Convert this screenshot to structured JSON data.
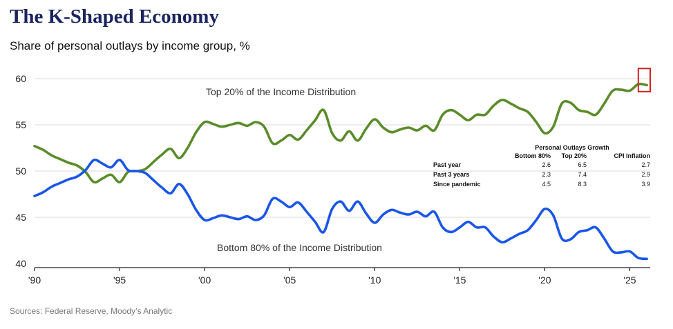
{
  "title": "The K-Shaped Economy",
  "subtitle": "Share of personal outlays by income group, %",
  "source": "Sources: Federal Reserve, Moody’s Analytic",
  "colors": {
    "top20": "#5b8c2a",
    "bottom80": "#1a56e8",
    "highlight": "#d42020",
    "grid": "#d9d9d9",
    "title": "#1a2560"
  },
  "table": {
    "title": "Personal Outlays Growth",
    "columns": [
      "Bottom 80%",
      "Top 20%",
      "CPI Inflation"
    ],
    "rows": [
      {
        "label": "Past year",
        "values": [
          "2.6",
          "6.5",
          "2.7"
        ]
      },
      {
        "label": "Past 3 years",
        "values": [
          "2.3",
          "7.4",
          "2.9"
        ]
      },
      {
        "label": "Since pandemic",
        "values": [
          "4.5",
          "8.3",
          "3.9"
        ]
      }
    ]
  },
  "chart_data": {
    "type": "line",
    "title": "The K-Shaped Economy",
    "subtitle": "Share of personal outlays by income group, %",
    "xlabel": "",
    "ylabel": "",
    "xlim": [
      1990,
      2026.5
    ],
    "ylim": [
      40,
      60
    ],
    "x_ticks": [
      1990,
      1995,
      2000,
      2005,
      2010,
      2015,
      2020,
      2025
    ],
    "x_tick_labels": [
      "'90",
      "'95",
      "'00",
      "'05",
      "'10",
      "'15",
      "'20",
      "'25"
    ],
    "y_ticks": [
      40,
      45,
      50,
      55,
      60
    ],
    "grid": "horizontal",
    "series": [
      {
        "name": "Top 20% of the Income Distribution",
        "color": "#5b8c2a",
        "points": [
          [
            1990.0,
            52.7
          ],
          [
            1990.5,
            52.3
          ],
          [
            1991.0,
            51.7
          ],
          [
            1991.5,
            51.3
          ],
          [
            1992.0,
            50.9
          ],
          [
            1992.5,
            50.6
          ],
          [
            1993.0,
            49.9
          ],
          [
            1993.5,
            48.8
          ],
          [
            1994.0,
            49.2
          ],
          [
            1994.5,
            49.6
          ],
          [
            1995.0,
            48.8
          ],
          [
            1995.5,
            49.9
          ],
          [
            1996.0,
            50.0
          ],
          [
            1996.5,
            50.2
          ],
          [
            1997.0,
            51.0
          ],
          [
            1997.5,
            51.8
          ],
          [
            1998.0,
            52.4
          ],
          [
            1998.5,
            51.4
          ],
          [
            1999.0,
            52.5
          ],
          [
            1999.5,
            54.2
          ],
          [
            2000.0,
            55.3
          ],
          [
            2000.5,
            55.1
          ],
          [
            2001.0,
            54.8
          ],
          [
            2001.5,
            55.0
          ],
          [
            2002.0,
            55.2
          ],
          [
            2002.5,
            54.9
          ],
          [
            2003.0,
            55.3
          ],
          [
            2003.5,
            54.8
          ],
          [
            2004.0,
            53.0
          ],
          [
            2004.5,
            53.3
          ],
          [
            2005.0,
            53.9
          ],
          [
            2005.5,
            53.4
          ],
          [
            2006.0,
            54.4
          ],
          [
            2006.5,
            55.5
          ],
          [
            2007.0,
            56.6
          ],
          [
            2007.5,
            54.1
          ],
          [
            2008.0,
            53.3
          ],
          [
            2008.5,
            54.3
          ],
          [
            2009.0,
            53.3
          ],
          [
            2009.5,
            54.6
          ],
          [
            2010.0,
            55.6
          ],
          [
            2010.5,
            54.7
          ],
          [
            2011.0,
            54.2
          ],
          [
            2011.5,
            54.5
          ],
          [
            2012.0,
            54.7
          ],
          [
            2012.5,
            54.4
          ],
          [
            2013.0,
            54.9
          ],
          [
            2013.5,
            54.4
          ],
          [
            2014.0,
            56.1
          ],
          [
            2014.5,
            56.6
          ],
          [
            2015.0,
            56.1
          ],
          [
            2015.5,
            55.5
          ],
          [
            2016.0,
            56.1
          ],
          [
            2016.5,
            56.1
          ],
          [
            2017.0,
            57.1
          ],
          [
            2017.5,
            57.7
          ],
          [
            2018.0,
            57.3
          ],
          [
            2018.5,
            56.8
          ],
          [
            2019.0,
            56.4
          ],
          [
            2019.5,
            55.3
          ],
          [
            2020.0,
            54.1
          ],
          [
            2020.5,
            54.8
          ],
          [
            2021.0,
            57.3
          ],
          [
            2021.5,
            57.4
          ],
          [
            2022.0,
            56.6
          ],
          [
            2022.5,
            56.4
          ],
          [
            2023.0,
            56.1
          ],
          [
            2023.5,
            57.3
          ],
          [
            2024.0,
            58.7
          ],
          [
            2024.5,
            58.8
          ],
          [
            2025.0,
            58.7
          ],
          [
            2025.5,
            59.4
          ],
          [
            2026.0,
            59.3
          ]
        ]
      },
      {
        "name": "Bottom 80% of the Income Distribution",
        "color": "#1a56e8",
        "points": [
          [
            1990.0,
            47.3
          ],
          [
            1990.5,
            47.7
          ],
          [
            1991.0,
            48.3
          ],
          [
            1991.5,
            48.7
          ],
          [
            1992.0,
            49.1
          ],
          [
            1992.5,
            49.4
          ],
          [
            1993.0,
            50.1
          ],
          [
            1993.5,
            51.2
          ],
          [
            1994.0,
            50.8
          ],
          [
            1994.5,
            50.4
          ],
          [
            1995.0,
            51.2
          ],
          [
            1995.5,
            50.1
          ],
          [
            1996.0,
            50.0
          ],
          [
            1996.5,
            49.8
          ],
          [
            1997.0,
            49.0
          ],
          [
            1997.5,
            48.2
          ],
          [
            1998.0,
            47.6
          ],
          [
            1998.5,
            48.6
          ],
          [
            1999.0,
            47.5
          ],
          [
            1999.5,
            45.8
          ],
          [
            2000.0,
            44.7
          ],
          [
            2000.5,
            44.9
          ],
          [
            2001.0,
            45.2
          ],
          [
            2001.5,
            45.0
          ],
          [
            2002.0,
            44.8
          ],
          [
            2002.5,
            45.1
          ],
          [
            2003.0,
            44.7
          ],
          [
            2003.5,
            45.2
          ],
          [
            2004.0,
            47.0
          ],
          [
            2004.5,
            46.7
          ],
          [
            2005.0,
            46.1
          ],
          [
            2005.5,
            46.6
          ],
          [
            2006.0,
            45.6
          ],
          [
            2006.5,
            44.5
          ],
          [
            2007.0,
            43.4
          ],
          [
            2007.5,
            45.9
          ],
          [
            2008.0,
            46.7
          ],
          [
            2008.5,
            45.7
          ],
          [
            2009.0,
            46.7
          ],
          [
            2009.5,
            45.4
          ],
          [
            2010.0,
            44.4
          ],
          [
            2010.5,
            45.3
          ],
          [
            2011.0,
            45.8
          ],
          [
            2011.5,
            45.5
          ],
          [
            2012.0,
            45.3
          ],
          [
            2012.5,
            45.6
          ],
          [
            2013.0,
            45.1
          ],
          [
            2013.5,
            45.6
          ],
          [
            2014.0,
            43.9
          ],
          [
            2014.5,
            43.4
          ],
          [
            2015.0,
            43.9
          ],
          [
            2015.5,
            44.5
          ],
          [
            2016.0,
            43.9
          ],
          [
            2016.5,
            43.9
          ],
          [
            2017.0,
            42.9
          ],
          [
            2017.5,
            42.3
          ],
          [
            2018.0,
            42.7
          ],
          [
            2018.5,
            43.2
          ],
          [
            2019.0,
            43.6
          ],
          [
            2019.5,
            44.7
          ],
          [
            2020.0,
            45.9
          ],
          [
            2020.5,
            45.2
          ],
          [
            2021.0,
            42.7
          ],
          [
            2021.5,
            42.6
          ],
          [
            2022.0,
            43.4
          ],
          [
            2022.5,
            43.6
          ],
          [
            2023.0,
            43.9
          ],
          [
            2023.5,
            42.7
          ],
          [
            2024.0,
            41.3
          ],
          [
            2024.5,
            41.2
          ],
          [
            2025.0,
            41.3
          ],
          [
            2025.5,
            40.6
          ],
          [
            2026.0,
            40.5
          ]
        ]
      }
    ],
    "annotations": [
      {
        "text": "Top 20% of the Income Distribution",
        "series": 0
      },
      {
        "text": "Bottom 80% of the Income Distribution",
        "series": 1
      }
    ],
    "highlight": {
      "x_range": [
        2025.5,
        2026.2
      ],
      "y_range": [
        58.6,
        61.1
      ],
      "color": "#d42020"
    }
  }
}
